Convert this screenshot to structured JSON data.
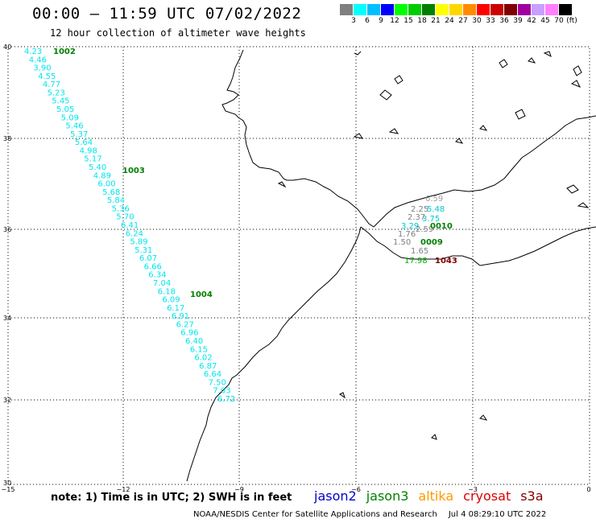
{
  "header": {
    "title": "00:00 – 11:59 UTC 07/02/2022",
    "subtitle": "12 hour collection of altimeter wave heights"
  },
  "scale": {
    "unit": "(ft)",
    "steps": [
      {
        "label": "3",
        "color": "#808080"
      },
      {
        "label": "6",
        "color": "#00ffff"
      },
      {
        "label": "9",
        "color": "#00bfff"
      },
      {
        "label": "12",
        "color": "#0000ff"
      },
      {
        "label": "15",
        "color": "#00ff00"
      },
      {
        "label": "18",
        "color": "#00cc00"
      },
      {
        "label": "21",
        "color": "#008000"
      },
      {
        "label": "24",
        "color": "#ffff00"
      },
      {
        "label": "27",
        "color": "#ffd700"
      },
      {
        "label": "30",
        "color": "#ff8c00"
      },
      {
        "label": "33",
        "color": "#ff0000"
      },
      {
        "label": "36",
        "color": "#cc0000"
      },
      {
        "label": "39",
        "color": "#800000"
      },
      {
        "label": "42",
        "color": "#a000a0"
      },
      {
        "label": "45",
        "color": "#c8a0ff"
      },
      {
        "label": "70",
        "color": "#ff80ff"
      },
      {
        "label": "",
        "color": "#000000"
      }
    ]
  },
  "axes": {
    "lon_ticks": [
      "−15",
      "−12",
      "−9",
      "−6",
      "−3",
      "0"
    ],
    "lat_ticks": [
      "40",
      "38",
      "36",
      "34",
      "32",
      "30"
    ]
  },
  "track_west": {
    "color": "#00e5ee",
    "values": [
      "4.23",
      "4.46",
      "3.90",
      "4.55",
      "4.77",
      "5.23",
      "5.45",
      "5.05",
      "5.09",
      "5.46",
      "5.37",
      "5.64",
      "4.98",
      "5.17",
      "5.40",
      "4.89",
      "6.00",
      "5.68",
      "5.84",
      "5.36",
      "5.70",
      "6.41",
      "6.24",
      "5.89",
      "5.31",
      "6.07",
      "6.66",
      "6.34",
      "7.04",
      "6.18",
      "6.09",
      "6.17",
      "6.91",
      "6.27",
      "6.96",
      "6.40",
      "6.15",
      "6.02",
      "6.87",
      "6.64",
      "7.50",
      "7.03",
      "6.72"
    ],
    "times": [
      "1002",
      "1003",
      "1004"
    ]
  },
  "track_east": {
    "time_color": "#008000",
    "red_time_color": "#800000",
    "labels": [
      {
        "text": "6.59",
        "color": "#a0a0a0"
      },
      {
        "text": "2.25",
        "color": "#808080"
      },
      {
        "text": "5.48",
        "color": "#00c8d0"
      },
      {
        "text": "2.37",
        "color": "#808080"
      },
      {
        "text": "3.75",
        "color": "#00c8d0"
      },
      {
        "text": "3.29",
        "color": "#00c8d0"
      },
      {
        "text": "2.59",
        "color": "#808080"
      },
      {
        "text": "1.76",
        "color": "#808080"
      },
      {
        "text": "1.50",
        "color": "#808080"
      },
      {
        "text": "1.65",
        "color": "#808080"
      },
      {
        "text": "17.98",
        "color": "#00b000"
      }
    ],
    "times": [
      {
        "text": "0010",
        "color": "#008000"
      },
      {
        "text": "0009",
        "color": "#008000"
      },
      {
        "text": "1043",
        "color": "#800000"
      }
    ]
  },
  "note": "note:  1) Time is in UTC;  2) SWH is in feet",
  "legend": [
    {
      "name": "jason2",
      "color": "#0000cc"
    },
    {
      "name": "jason3",
      "color": "#008000"
    },
    {
      "name": "altika",
      "color": "#ff9900"
    },
    {
      "name": "cryosat",
      "color": "#dd0000"
    },
    {
      "name": "s3a",
      "color": "#800000"
    }
  ],
  "footer": {
    "credit": "NOAA/NESDIS Center for Satellite Applications and Research",
    "timestamp": "Jul  4 08:29:10 UTC 2022"
  }
}
